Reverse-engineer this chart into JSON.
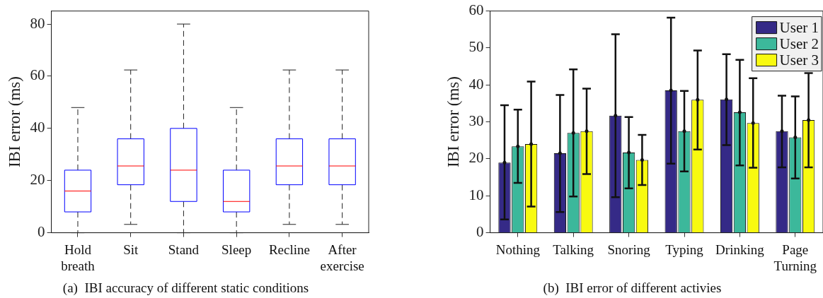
{
  "chart_data": [
    {
      "type": "box",
      "title": "(a)  IBI accuracy of different static conditions",
      "ylabel": "IBI error (ms)",
      "categories": [
        "Hold breath",
        "Sit",
        "Stand",
        "Sleep",
        "Recline",
        "After exercise"
      ],
      "boxes": [
        {
          "low": 0,
          "q1": 8,
          "median": 16,
          "q3": 24,
          "high": 48
        },
        {
          "low": 3.2,
          "q1": 18.4,
          "median": 25.6,
          "q3": 36,
          "high": 62.4
        },
        {
          "low": 0,
          "q1": 12,
          "median": 24,
          "q3": 40,
          "high": 80
        },
        {
          "low": 0,
          "q1": 8,
          "median": 12,
          "q3": 24,
          "high": 48
        },
        {
          "low": 3.2,
          "q1": 18.4,
          "median": 25.6,
          "q3": 36,
          "high": 62.4
        },
        {
          "low": 3.2,
          "q1": 18.4,
          "median": 25.6,
          "q3": 36,
          "high": 62.4
        }
      ],
      "color": "#0000ff",
      "ylim": [
        0,
        85
      ],
      "yticks": [
        0,
        20,
        40,
        60,
        80
      ],
      "grid": false
    },
    {
      "type": "bar",
      "title": "(b)  IBI error of different activies",
      "ylabel": "IBI error (ms)",
      "categories": [
        "Nothing",
        "Talking",
        "Snoring",
        "Typing",
        "Drinking",
        "Page Turning"
      ],
      "series": [
        {
          "name": "User 1",
          "color": "#352a87",
          "values": [
            19.0,
            21.5,
            31.7,
            38.5,
            36.1,
            27.5
          ],
          "errors": [
            [
              3.6,
              34.5
            ],
            [
              5.6,
              37.3
            ],
            [
              9.6,
              53.7
            ],
            [
              18.7,
              58.2
            ],
            [
              23.7,
              48.3
            ],
            [
              17.7,
              37.1
            ]
          ]
        },
        {
          "name": "User 2",
          "color": "#3cb89b",
          "values": [
            23.4,
            27.0,
            21.7,
            27.5,
            32.6,
            25.8
          ],
          "errors": [
            [
              13.5,
              33.3
            ],
            [
              9.8,
              44.2
            ],
            [
              12.0,
              31.3
            ],
            [
              16.6,
              38.4
            ],
            [
              18.2,
              46.8
            ],
            [
              14.7,
              36.9
            ]
          ]
        },
        {
          "name": "User 3",
          "color": "#f8fa10",
          "values": [
            24.0,
            27.5,
            19.7,
            36.0,
            29.7,
            30.5
          ],
          "errors": [
            [
              7.1,
              40.9
            ],
            [
              15.9,
              39.0
            ],
            [
              12.9,
              26.5
            ],
            [
              22.5,
              49.3
            ],
            [
              17.6,
              41.8
            ],
            [
              17.7,
              43.2
            ]
          ]
        }
      ],
      "ylim": [
        0,
        60
      ],
      "yticks": [
        0,
        10,
        20,
        30,
        40,
        50,
        60
      ],
      "grid": false,
      "legend": "top right"
    }
  ]
}
